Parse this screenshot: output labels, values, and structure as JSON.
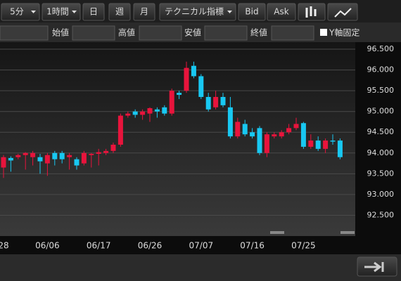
{
  "toolbar": {
    "buttons": [
      "5分",
      "1時間",
      "日",
      "週",
      "月",
      "テクニカル指標",
      "Bid",
      "Ask"
    ],
    "fields": [
      "始値",
      "高値",
      "安値",
      "終値"
    ],
    "checkbox": "Y軸固定"
  },
  "chart_data": {
    "type": "candlestick",
    "up_color": "#e8143c",
    "down_color": "#18c8f2",
    "grid": true,
    "categories": [
      "28",
      null,
      null,
      null,
      null,
      null,
      "06/06",
      null,
      null,
      null,
      null,
      null,
      null,
      "06/17",
      null,
      null,
      null,
      null,
      null,
      null,
      "06/26",
      null,
      null,
      null,
      null,
      null,
      null,
      "07/07",
      null,
      null,
      null,
      null,
      null,
      null,
      "07/16",
      null,
      null,
      null,
      null,
      null,
      null,
      "07/25",
      null,
      null,
      null,
      null,
      null
    ],
    "series": {
      "open": [
        93.65,
        93.88,
        93.9,
        93.95,
        93.9,
        93.9,
        93.75,
        94.0,
        94.0,
        93.9,
        93.85,
        93.75,
        93.95,
        93.98,
        94.0,
        94.05,
        94.2,
        94.9,
        95.0,
        94.92,
        94.95,
        95.05,
        95.1,
        94.95,
        95.45,
        95.5,
        96.1,
        95.85,
        95.35,
        95.1,
        95.35,
        95.1,
        94.4,
        94.7,
        94.5,
        94.6,
        94.0,
        94.4,
        94.4,
        94.5,
        94.6,
        94.72,
        94.15,
        94.3,
        94.1,
        94.3,
        94.3
      ],
      "high": [
        93.95,
        93.92,
        93.98,
        94.02,
        94.05,
        93.98,
        94.0,
        94.05,
        94.05,
        94.0,
        93.9,
        94.05,
        94.0,
        94.1,
        94.1,
        94.25,
        94.95,
        95.0,
        95.05,
        95.05,
        95.1,
        95.1,
        95.15,
        95.55,
        95.5,
        96.2,
        96.2,
        95.9,
        95.45,
        95.5,
        95.45,
        95.35,
        94.85,
        94.8,
        94.6,
        94.65,
        94.5,
        94.5,
        94.55,
        94.7,
        94.85,
        94.75,
        94.45,
        94.4,
        94.35,
        94.45,
        94.35
      ],
      "low": [
        93.4,
        93.55,
        93.85,
        93.6,
        93.7,
        93.5,
        93.45,
        93.7,
        93.75,
        93.6,
        93.6,
        93.7,
        93.65,
        93.7,
        93.95,
        94.0,
        94.15,
        94.85,
        94.85,
        94.8,
        94.75,
        94.85,
        94.9,
        94.9,
        95.3,
        95.45,
        95.8,
        95.3,
        95.0,
        95.05,
        95.1,
        94.35,
        94.35,
        94.4,
        94.35,
        93.95,
        93.9,
        94.35,
        94.35,
        94.45,
        94.55,
        94.1,
        94.1,
        94.05,
        94.0,
        94.2,
        93.85
      ],
      "close": [
        93.9,
        93.82,
        93.95,
        94.0,
        94.0,
        93.8,
        93.95,
        93.85,
        93.85,
        93.95,
        93.7,
        94.0,
        93.98,
        94.02,
        94.05,
        94.2,
        94.9,
        94.95,
        94.92,
        95.0,
        95.08,
        95.0,
        94.95,
        95.5,
        95.4,
        96.05,
        95.85,
        95.35,
        95.05,
        95.35,
        95.15,
        94.4,
        94.75,
        94.45,
        94.4,
        94.0,
        94.45,
        94.45,
        94.5,
        94.6,
        94.7,
        94.15,
        94.3,
        94.1,
        94.3,
        94.28,
        93.9
      ]
    },
    "ylim": [
      92.0,
      96.67
    ],
    "yticks": [
      {
        "value": 92.5,
        "label": "92.500"
      },
      {
        "value": 93.0,
        "label": "93.000"
      },
      {
        "value": 93.5,
        "label": "93.500"
      },
      {
        "value": 94.0,
        "label": "94.000"
      },
      {
        "value": 94.5,
        "label": "94.500"
      },
      {
        "value": 95.0,
        "label": "95.000"
      },
      {
        "value": 95.5,
        "label": "95.500"
      },
      {
        "value": 96.0,
        "label": "96.000"
      },
      {
        "value": 96.5,
        "label": "96.500"
      }
    ]
  }
}
